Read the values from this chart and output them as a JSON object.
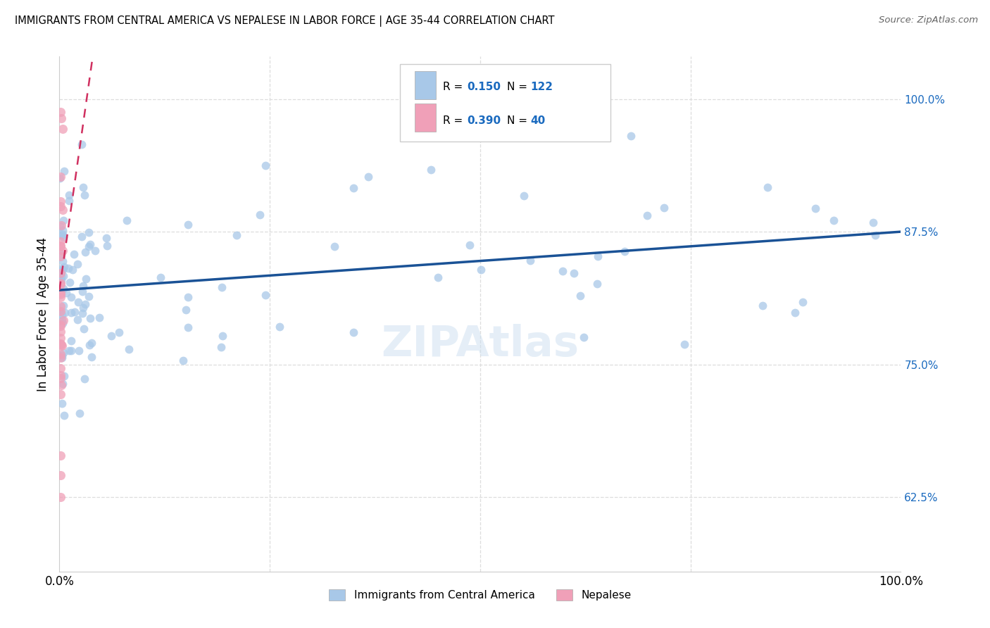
{
  "title": "IMMIGRANTS FROM CENTRAL AMERICA VS NEPALESE IN LABOR FORCE | AGE 35-44 CORRELATION CHART",
  "source": "Source: ZipAtlas.com",
  "ylabel": "In Labor Force | Age 35-44",
  "legend_label1": "Immigrants from Central America",
  "legend_label2": "Nepalese",
  "R1": 0.15,
  "N1": 122,
  "R2": 0.39,
  "N2": 40,
  "color1": "#a8c8e8",
  "color1_line": "#1a5296",
  "color2": "#f0a0b8",
  "color2_line": "#d03060",
  "xlim": [
    0.0,
    1.0
  ],
  "ylim_low": 0.555,
  "ylim_high": 1.04,
  "right_yticks": [
    0.625,
    0.75,
    0.875,
    1.0
  ],
  "right_yticklabels": [
    "62.5%",
    "75.0%",
    "87.5%",
    "100.0%"
  ],
  "right_ytick_color": "#1a6abf",
  "grid_color": "#dddddd",
  "blue_trend_y0": 0.82,
  "blue_trend_y1": 0.875,
  "pink_trend_y0": 0.82,
  "pink_trend_y1": 0.97,
  "pink_trend_x1": 0.022,
  "figsize": [
    14.06,
    8.92
  ],
  "dpi": 100
}
